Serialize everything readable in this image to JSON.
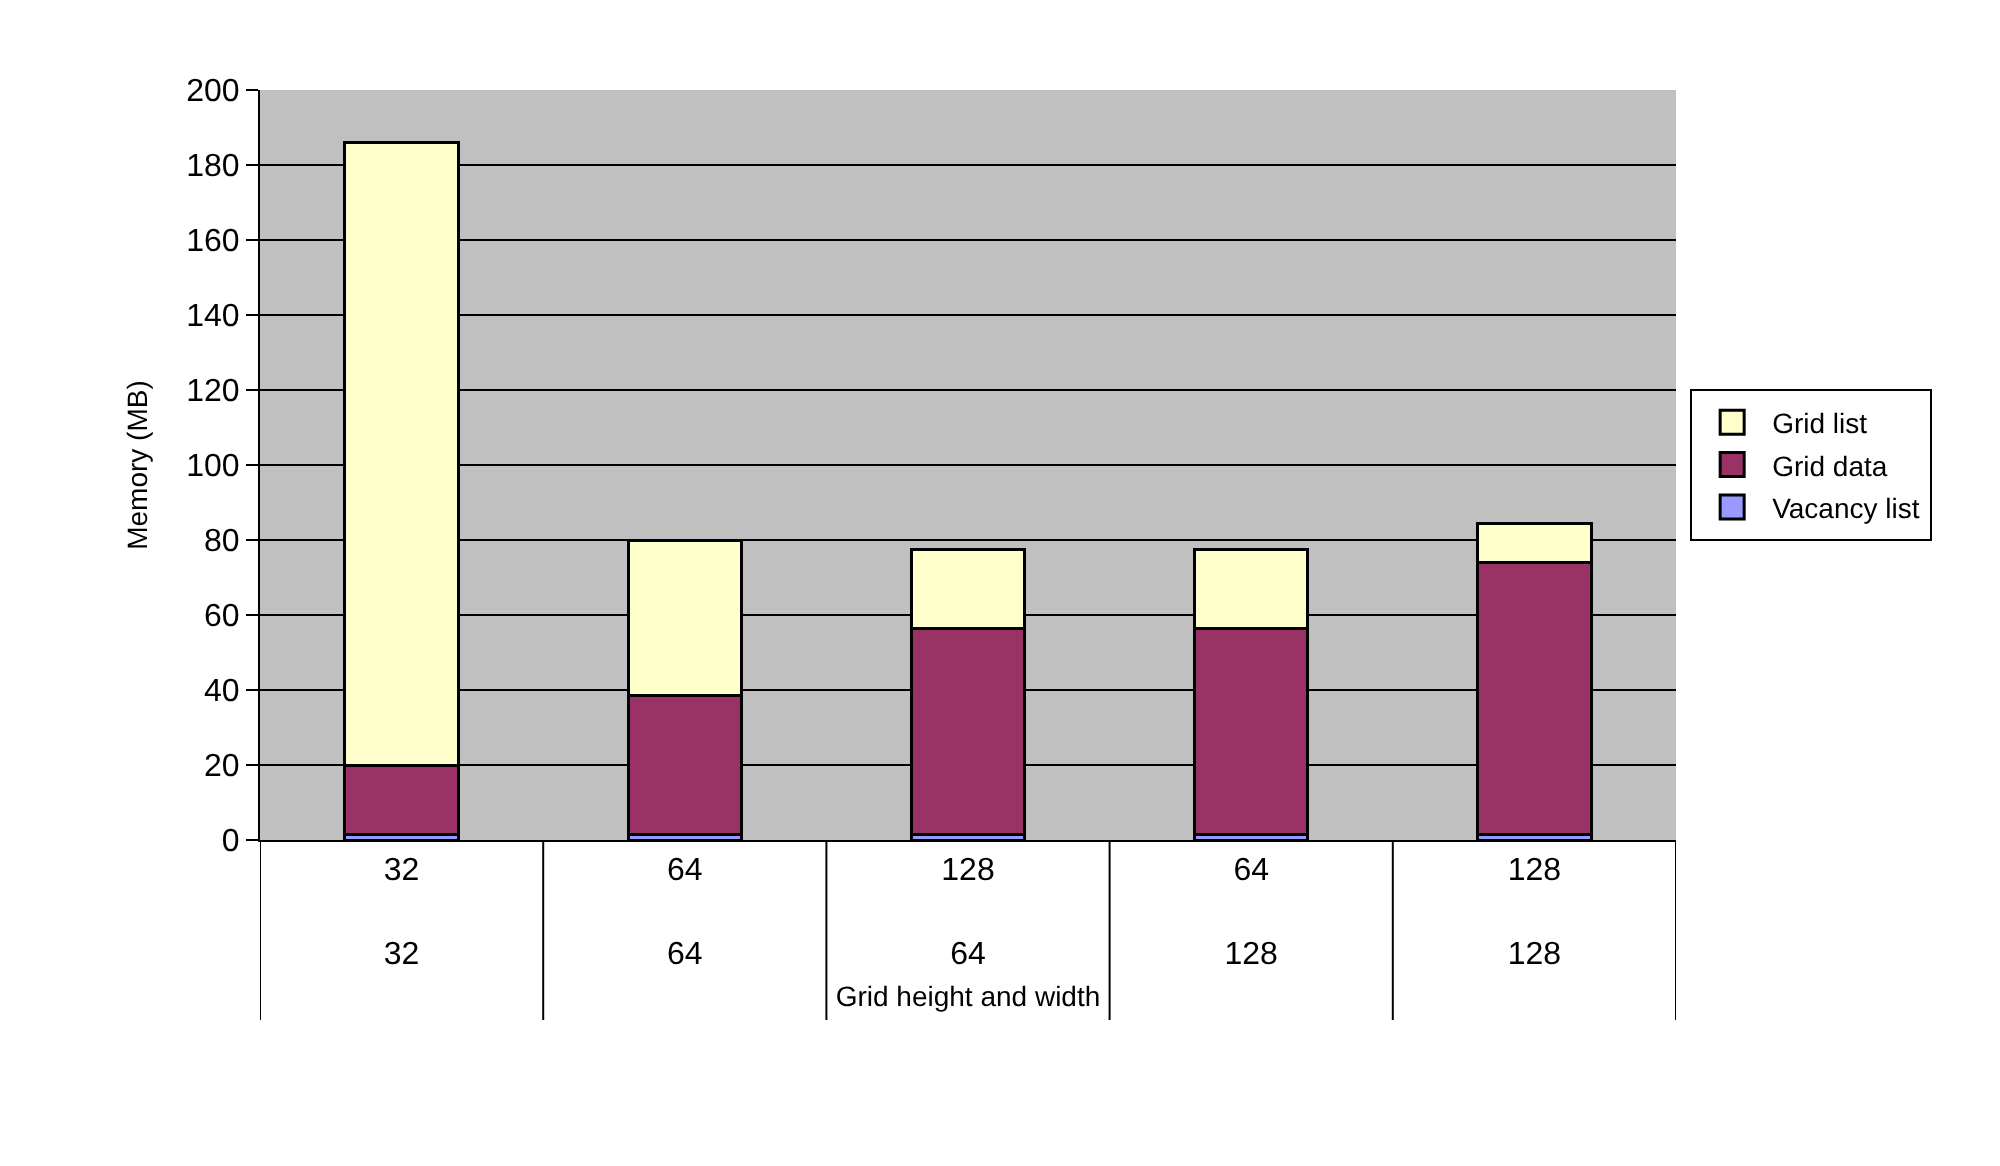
{
  "chart_data": {
    "type": "bar",
    "stacked": true,
    "xlabel": "Grid height and width",
    "ylabel": "Memory (MB)",
    "categories": [
      "32\n32",
      "64\n64",
      "128\n64",
      "64\n128",
      "128\n128"
    ],
    "series": [
      {
        "name": "Vacancy list",
        "color": "#9999ff",
        "values": [
          1.5,
          1.5,
          1.5,
          1.5,
          1.5
        ]
      },
      {
        "name": "Grid data",
        "color": "#993366",
        "values": [
          18.5,
          37,
          55,
          55,
          72.5
        ]
      },
      {
        "name": "Grid list",
        "color": "#ffffcc",
        "values": [
          166,
          41.5,
          21,
          21,
          10.5
        ]
      }
    ],
    "ylim": [
      0,
      200
    ],
    "yticks": [
      0,
      20,
      40,
      60,
      80,
      100,
      120,
      140,
      160,
      180,
      200
    ],
    "grid": "y",
    "legend": "right"
  }
}
